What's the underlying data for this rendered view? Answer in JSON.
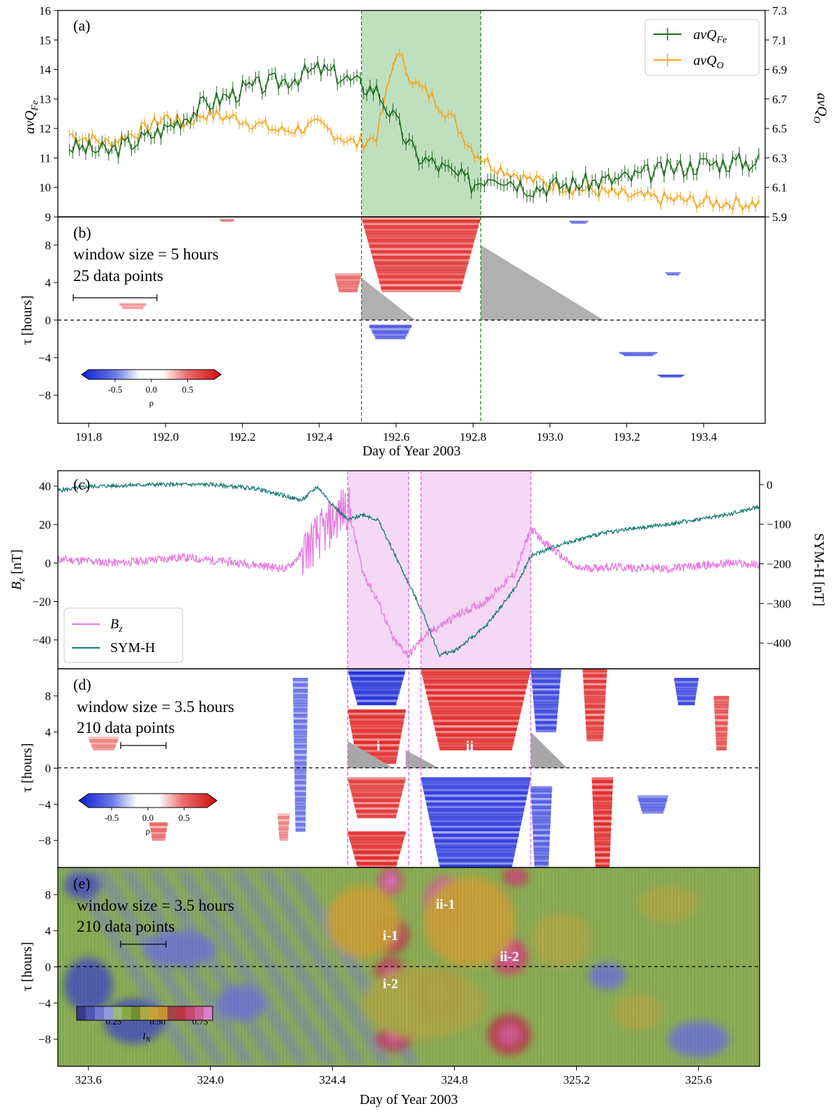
{
  "figure": {
    "xlabel_top": "Day of Year 2003",
    "xlabel_bottom": "Day of Year 2003"
  },
  "chart_data": [
    {
      "panel": "a",
      "panel_label": "(a)",
      "type": "line",
      "ylabel_left": "avQ",
      "ylabel_left_sub": "Fe",
      "ylabel_right": "avQ",
      "ylabel_right_sub": "O",
      "xlim": [
        191.72,
        193.56
      ],
      "ylim_left": [
        9,
        16
      ],
      "ylim_right": [
        5.9,
        7.3
      ],
      "yticks_left": [
        "9",
        "10",
        "11",
        "12",
        "13",
        "14",
        "15",
        "16"
      ],
      "yticks_right": [
        "5.9",
        "6.1",
        "6.3",
        "6.5",
        "6.7",
        "6.9",
        "7.1",
        "7.3"
      ],
      "highlight": [
        192.51,
        192.82
      ],
      "highlight_color": "#bfe0bf",
      "legend": [
        {
          "name": "avQ",
          "sub": "Fe",
          "color": "#1e6b1e"
        },
        {
          "name": "avQ",
          "sub": "O",
          "color": "#f2a51c"
        }
      ],
      "series": [
        {
          "name": "avQFe",
          "color": "#1e6b1e",
          "axis": "left",
          "x": [
            191.75,
            191.85,
            191.95,
            192.0,
            192.05,
            192.1,
            192.2,
            192.3,
            192.4,
            192.45,
            192.5,
            192.55,
            192.6,
            192.65,
            192.7,
            192.8,
            192.85,
            192.95,
            193.05,
            193.2,
            193.3,
            193.4,
            193.55
          ],
          "y": [
            11.4,
            11.2,
            11.7,
            12.0,
            12.4,
            12.8,
            13.3,
            13.6,
            14.0,
            13.8,
            13.5,
            13.3,
            12.2,
            11.1,
            10.8,
            10.1,
            10.5,
            10.0,
            10.1,
            10.3,
            10.6,
            10.8,
            10.9
          ]
        },
        {
          "name": "avQO",
          "color": "#f2a51c",
          "axis": "right",
          "x": [
            191.75,
            191.85,
            191.95,
            192.0,
            192.05,
            192.1,
            192.2,
            192.3,
            192.4,
            192.45,
            192.5,
            192.55,
            192.6,
            192.65,
            192.7,
            192.75,
            192.8,
            192.85,
            192.95,
            193.05,
            193.2,
            193.3,
            193.4,
            193.55
          ],
          "y": [
            6.46,
            6.4,
            6.5,
            6.58,
            6.53,
            6.6,
            6.56,
            6.48,
            6.52,
            6.45,
            6.39,
            6.45,
            7.02,
            6.8,
            6.7,
            6.55,
            6.35,
            6.25,
            6.15,
            6.1,
            6.04,
            6.02,
            6.0,
            5.99
          ]
        }
      ]
    },
    {
      "panel": "b",
      "panel_label": "(b)",
      "type": "heatmap",
      "ylabel": "τ [hours]",
      "annotation_line1": "window size = 5 hours",
      "annotation_line2": "25 data points",
      "xlim": [
        191.72,
        193.56
      ],
      "ylim": [
        -11,
        11
      ],
      "yticks": [
        "-8",
        "-4",
        "0",
        "4",
        "8"
      ],
      "xticks": [
        "191.8",
        "192.0",
        "192.2",
        "192.4",
        "192.6",
        "192.8",
        "193.0",
        "193.2",
        "193.4"
      ],
      "colorbar": {
        "label": "ρ",
        "ticks": [
          "-0.5",
          "0.0",
          "0.5"
        ],
        "range": [
          -1,
          1
        ]
      },
      "blocks": [
        {
          "x0": 192.51,
          "x1": 192.82,
          "y0": 3,
          "y1": 11,
          "rho": 0.8
        },
        {
          "x0": 192.53,
          "x1": 192.64,
          "y0": -2,
          "y1": -0.5,
          "rho": -0.7
        },
        {
          "x0": 192.44,
          "x1": 192.51,
          "y0": 3,
          "y1": 5,
          "rho": 0.6
        },
        {
          "x0": 191.88,
          "x1": 191.95,
          "y0": 1.2,
          "y1": 1.8,
          "rho": 0.4
        },
        {
          "x0": 192.14,
          "x1": 192.18,
          "y0": 10.5,
          "y1": 10.8,
          "rho": 0.5
        },
        {
          "x0": 193.05,
          "x1": 193.1,
          "y0": 10.3,
          "y1": 10.6,
          "rho": -0.6
        },
        {
          "x0": 193.18,
          "x1": 193.28,
          "y0": -3.8,
          "y1": -3.4,
          "rho": -0.7
        },
        {
          "x0": 193.28,
          "x1": 193.35,
          "y0": -6.1,
          "y1": -5.8,
          "rho": -0.8
        },
        {
          "x0": 193.3,
          "x1": 193.34,
          "y0": 4.8,
          "y1": 5.1,
          "rho": -0.6
        }
      ],
      "gray_triangles": [
        {
          "points": [
            [
              192.51,
              4.5
            ],
            [
              192.51,
              0
            ],
            [
              192.65,
              0
            ]
          ]
        },
        {
          "points": [
            [
              192.82,
              8
            ],
            [
              192.82,
              0
            ],
            [
              193.14,
              0
            ]
          ]
        }
      ]
    },
    {
      "panel": "c",
      "panel_label": "(c)",
      "type": "line",
      "ylabel_left": "B",
      "ylabel_left_sub": "z",
      "ylabel_left_unit": " [nT]",
      "ylabel_right": "SYM-H [nT]",
      "xlim": [
        323.5,
        325.8
      ],
      "ylim_left": [
        -55,
        48
      ],
      "ylim_right": [
        -465,
        35
      ],
      "yticks_left": [
        "-40",
        "-20",
        "0",
        "20",
        "40"
      ],
      "yticks_right": [
        "-400",
        "-300",
        "-200",
        "-100",
        "0"
      ],
      "highlights": [
        [
          324.45,
          324.65
        ],
        [
          324.69,
          325.05
        ]
      ],
      "highlight_color": "#f4d8f4",
      "legend": [
        {
          "name": "B",
          "sub": "z",
          "color": "#e878e0"
        },
        {
          "name": "SYM-H",
          "sub": "",
          "color": "#1a7a73"
        }
      ],
      "series": [
        {
          "name": "Bz",
          "color": "#e878e0",
          "axis": "left",
          "x": [
            323.5,
            323.7,
            323.9,
            324.1,
            324.25,
            324.33,
            324.38,
            324.42,
            324.45,
            324.5,
            324.55,
            324.6,
            324.65,
            324.7,
            324.8,
            324.9,
            325.0,
            325.05,
            325.1,
            325.2,
            325.3,
            325.5,
            325.7,
            325.8
          ],
          "y": [
            2,
            0,
            3,
            0,
            -3,
            10,
            18,
            25,
            30,
            -5,
            -20,
            -40,
            -48,
            -38,
            -28,
            -20,
            -5,
            18,
            10,
            -3,
            -2,
            -3,
            0,
            -1
          ]
        },
        {
          "name": "SYM-H",
          "color": "#1a7a73",
          "axis": "right",
          "x": [
            323.5,
            323.6,
            323.8,
            324.0,
            324.15,
            324.3,
            324.35,
            324.4,
            324.45,
            324.5,
            324.55,
            324.6,
            324.7,
            324.75,
            324.8,
            324.9,
            325.0,
            325.05,
            325.15,
            325.2,
            325.3,
            325.5,
            325.7,
            325.8
          ],
          "y": [
            -15,
            -5,
            0,
            0,
            -10,
            -40,
            -5,
            -50,
            -90,
            -75,
            -90,
            -170,
            -330,
            -430,
            -420,
            -360,
            -260,
            -180,
            -150,
            -140,
            -120,
            -100,
            -75,
            -55
          ]
        }
      ]
    },
    {
      "panel": "d",
      "panel_label": "(d)",
      "type": "heatmap",
      "ylabel": "τ [hours]",
      "annotation_line1": "window size = 3.5 hours",
      "annotation_line2": "210 data points",
      "xlim": [
        323.5,
        325.8
      ],
      "ylim": [
        -11,
        11
      ],
      "yticks": [
        "-8",
        "-4",
        "0",
        "4",
        "8"
      ],
      "colorbar": {
        "label": "ρ",
        "ticks": [
          "-0.5",
          "0.0",
          "0.5"
        ],
        "range": [
          -1,
          1
        ]
      },
      "region_labels": [
        {
          "text": "i",
          "x": 324.55,
          "y": 2.5
        },
        {
          "text": "ii",
          "x": 324.85,
          "y": 2.5
        }
      ],
      "blocks": [
        {
          "x0": 324.45,
          "x1": 324.64,
          "y0": 7,
          "y1": 11,
          "rho": -0.9
        },
        {
          "x0": 324.45,
          "x1": 324.64,
          "y0": 0.5,
          "y1": 6.5,
          "rho": 0.85
        },
        {
          "x0": 324.45,
          "x1": 324.64,
          "y0": -5.5,
          "y1": -1,
          "rho": 0.8
        },
        {
          "x0": 324.45,
          "x1": 324.64,
          "y0": -11,
          "y1": -7,
          "rho": 0.85
        },
        {
          "x0": 324.69,
          "x1": 325.05,
          "y0": 2,
          "y1": 11,
          "rho": 0.85
        },
        {
          "x0": 324.69,
          "x1": 325.05,
          "y0": -11,
          "y1": -1,
          "rho": -0.85
        },
        {
          "x0": 325.05,
          "x1": 325.15,
          "y0": 4,
          "y1": 11,
          "rho": -0.8
        },
        {
          "x0": 325.05,
          "x1": 325.12,
          "y0": -11,
          "y1": -2,
          "rho": -0.7
        },
        {
          "x0": 325.22,
          "x1": 325.3,
          "y0": 3,
          "y1": 11,
          "rho": 0.8
        },
        {
          "x0": 325.25,
          "x1": 325.32,
          "y0": -11,
          "y1": -1,
          "rho": 0.85
        },
        {
          "x0": 324.27,
          "x1": 324.32,
          "y0": -7,
          "y1": 10,
          "rho": -0.6
        },
        {
          "x0": 324.22,
          "x1": 324.26,
          "y0": -8,
          "y1": -5,
          "rho": 0.5
        },
        {
          "x0": 323.8,
          "x1": 323.86,
          "y0": -8,
          "y1": -6,
          "rho": 0.6
        },
        {
          "x0": 323.6,
          "x1": 323.7,
          "y0": 2,
          "y1": 3.5,
          "rho": 0.5
        },
        {
          "x0": 325.52,
          "x1": 325.6,
          "y0": 7,
          "y1": 10,
          "rho": -0.8
        },
        {
          "x0": 325.4,
          "x1": 325.5,
          "y0": -5,
          "y1": -3,
          "rho": -0.7
        },
        {
          "x0": 325.65,
          "x1": 325.7,
          "y0": 2,
          "y1": 8,
          "rho": 0.7
        }
      ],
      "gray_triangles": [
        {
          "points": [
            [
              324.45,
              3
            ],
            [
              324.45,
              0
            ],
            [
              324.6,
              0
            ]
          ]
        },
        {
          "points": [
            [
              324.64,
              2
            ],
            [
              324.64,
              0
            ],
            [
              324.75,
              0
            ]
          ]
        },
        {
          "points": [
            [
              325.05,
              4
            ],
            [
              325.05,
              0
            ],
            [
              325.17,
              0
            ]
          ]
        }
      ]
    },
    {
      "panel": "e",
      "panel_label": "(e)",
      "type": "heatmap",
      "ylabel": "τ [hours]",
      "annotation_line1": "window size = 3.5 hours",
      "annotation_line2": "210 data points",
      "xlim": [
        323.5,
        325.8
      ],
      "ylim": [
        -11,
        11
      ],
      "yticks": [
        "-8",
        "-4",
        "0",
        "4",
        "8"
      ],
      "xticks": [
        "323.6",
        "324.0",
        "324.4",
        "324.8",
        "325.2",
        "325.6"
      ],
      "colorbar": {
        "label": "I",
        "label_sub": "N",
        "ticks": [
          "0.25",
          "0.50",
          "0.75"
        ],
        "range": [
          0,
          0.9
        ]
      },
      "colormap": [
        "#3a3a8a",
        "#5058b0",
        "#7078c8",
        "#9098d8",
        "#9ab878",
        "#88a848",
        "#6e9030",
        "#aca848",
        "#c8a038",
        "#c89030",
        "#a04848",
        "#b83848",
        "#c84868",
        "#d06098",
        "#d880c8"
      ],
      "region_labels": [
        {
          "text": "ii-1",
          "x": 324.77,
          "y": 7
        },
        {
          "text": "i-1",
          "x": 324.59,
          "y": 3.5
        },
        {
          "text": "ii-2",
          "x": 324.98,
          "y": 1.2
        },
        {
          "text": "i-2",
          "x": 324.59,
          "y": -1.8
        }
      ],
      "blobs": [
        {
          "x": 324.59,
          "y": 9.5,
          "rx": 0.04,
          "ry": 1.5,
          "value": 0.75
        },
        {
          "x": 324.59,
          "y": 3.5,
          "rx": 0.06,
          "ry": 2.0,
          "value": 0.7
        },
        {
          "x": 324.59,
          "y": -0.5,
          "rx": 0.05,
          "ry": 1.5,
          "value": 0.7
        },
        {
          "x": 324.77,
          "y": 7,
          "rx": 0.07,
          "ry": 3.0,
          "value": 0.78
        },
        {
          "x": 324.75,
          "y": -3,
          "rx": 0.08,
          "ry": 2.8,
          "value": 0.72
        },
        {
          "x": 324.98,
          "y": 1.2,
          "rx": 0.06,
          "ry": 2.0,
          "value": 0.74
        },
        {
          "x": 325.0,
          "y": 10,
          "rx": 0.04,
          "ry": 1.0,
          "value": 0.72
        },
        {
          "x": 324.6,
          "y": -8,
          "rx": 0.06,
          "ry": 1.3,
          "value": 0.72
        },
        {
          "x": 324.98,
          "y": -7.5,
          "rx": 0.07,
          "ry": 2.2,
          "value": 0.72
        },
        {
          "x": 324.5,
          "y": 5,
          "rx": 0.12,
          "ry": 4,
          "value": 0.48
        },
        {
          "x": 324.85,
          "y": 5,
          "rx": 0.15,
          "ry": 5,
          "value": 0.48
        },
        {
          "x": 324.7,
          "y": -4,
          "rx": 0.2,
          "ry": 4,
          "value": 0.46
        },
        {
          "x": 325.15,
          "y": 3,
          "rx": 0.1,
          "ry": 3,
          "value": 0.46
        },
        {
          "x": 325.5,
          "y": 7,
          "rx": 0.1,
          "ry": 2,
          "value": 0.45
        },
        {
          "x": 325.4,
          "y": -5,
          "rx": 0.08,
          "ry": 2,
          "value": 0.45
        },
        {
          "x": 323.6,
          "y": -2,
          "rx": 0.08,
          "ry": 3,
          "value": 0.08
        },
        {
          "x": 323.75,
          "y": -6,
          "rx": 0.1,
          "ry": 2.5,
          "value": 0.1
        },
        {
          "x": 323.9,
          "y": 2,
          "rx": 0.12,
          "ry": 2,
          "value": 0.12
        },
        {
          "x": 324.1,
          "y": -4,
          "rx": 0.08,
          "ry": 2,
          "value": 0.12
        },
        {
          "x": 323.58,
          "y": 9,
          "rx": 0.06,
          "ry": 1.5,
          "value": 0.1
        },
        {
          "x": 325.6,
          "y": -8,
          "rx": 0.1,
          "ry": 2,
          "value": 0.12
        },
        {
          "x": 325.3,
          "y": -1,
          "rx": 0.06,
          "ry": 1.5,
          "value": 0.12
        }
      ]
    }
  ]
}
